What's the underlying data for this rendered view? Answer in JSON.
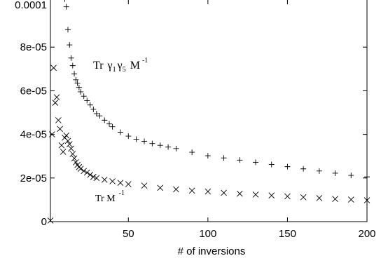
{
  "chart_data": {
    "type": "scatter",
    "title": "",
    "xlabel": "# of inversions",
    "ylabel": "",
    "xlim": [
      1,
      200
    ],
    "ylim": [
      0,
      0.0001
    ],
    "grid": false,
    "xticks": [
      {
        "value": 50,
        "label": "50"
      },
      {
        "value": 100,
        "label": "100"
      },
      {
        "value": 150,
        "label": "150"
      },
      {
        "value": 200,
        "label": "200"
      }
    ],
    "yticks": [
      {
        "value": 0,
        "label": "0"
      },
      {
        "value": 2e-05,
        "label": "2e-05"
      },
      {
        "value": 4e-05,
        "label": "4e-05"
      },
      {
        "value": 6e-05,
        "label": "6e-05"
      },
      {
        "value": 8e-05,
        "label": "8e-05"
      },
      {
        "value": 0.0001,
        "label": "0.0001"
      }
    ],
    "annotations": {
      "upper": {
        "base": "Tr",
        "g1": "γ",
        "s1": "1",
        "g2": "γ",
        "s2": "5",
        "m": "M",
        "sup": "-1"
      },
      "lower": {
        "base": "Tr M",
        "sup": "-1"
      }
    },
    "series": [
      {
        "marker": "plus",
        "x": [
          10,
          11,
          12,
          13,
          14,
          15,
          16,
          17,
          18,
          19,
          20,
          22,
          24,
          26,
          28,
          30,
          32,
          35,
          38,
          40,
          45,
          50,
          55,
          60,
          65,
          70,
          75,
          80,
          90,
          100,
          110,
          120,
          130,
          140,
          150,
          160,
          170,
          180,
          190,
          200
        ],
        "y": [
          0.000102,
          9.85e-05,
          8.8e-05,
          8.1e-05,
          7.5e-05,
          7.15e-05,
          6.78e-05,
          6.5e-05,
          6.35e-05,
          6.15e-05,
          5.95e-05,
          5.75e-05,
          5.55e-05,
          5.35e-05,
          5.15e-05,
          4.95e-05,
          4.85e-05,
          4.65e-05,
          4.48e-05,
          4.35e-05,
          4.1e-05,
          3.92e-05,
          3.78e-05,
          3.68e-05,
          3.58e-05,
          3.5e-05,
          3.42e-05,
          3.35e-05,
          3.18e-05,
          3.02e-05,
          2.92e-05,
          2.82e-05,
          2.72e-05,
          2.62e-05,
          2.52e-05,
          2.42e-05,
          2.32e-05,
          2.22e-05,
          2.12e-05,
          2.05e-05
        ]
      },
      {
        "marker": "x",
        "x": [
          1,
          2,
          3,
          4,
          5,
          6,
          7,
          8,
          9,
          10,
          11,
          12,
          13,
          14,
          15,
          16,
          17,
          18,
          19,
          20,
          22,
          24,
          26,
          28,
          30,
          35,
          40,
          45,
          50,
          60,
          70,
          80,
          90,
          100,
          110,
          120,
          130,
          140,
          150,
          160,
          170,
          180,
          190,
          200
        ],
        "y": [
          5e-07,
          4e-05,
          7.05e-05,
          5.45e-05,
          5.7e-05,
          4.65e-05,
          4.25e-05,
          3.5e-05,
          3.2e-05,
          3.85e-05,
          3.95e-05,
          3.7e-05,
          3.55e-05,
          3.35e-05,
          3.1e-05,
          2.9e-05,
          2.72e-05,
          2.6e-05,
          2.5e-05,
          2.42e-05,
          2.32e-05,
          2.25e-05,
          2.15e-05,
          2.05e-05,
          2e-05,
          1.92e-05,
          1.85e-05,
          1.78e-05,
          1.72e-05,
          1.65e-05,
          1.55e-05,
          1.48e-05,
          1.42e-05,
          1.38e-05,
          1.32e-05,
          1.28e-05,
          1.24e-05,
          1.2e-05,
          1.16e-05,
          1.12e-05,
          1.08e-05,
          1.04e-05,
          1.01e-05,
          9.8e-06
        ]
      }
    ]
  }
}
